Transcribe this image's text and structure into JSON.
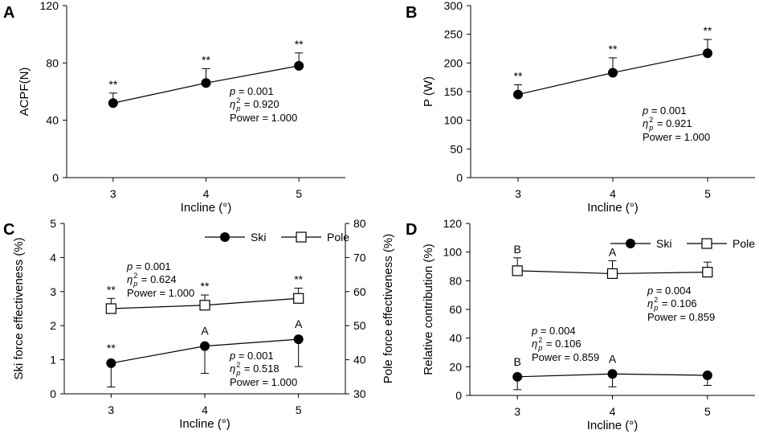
{
  "chart_data": [
    {
      "panel": "A",
      "type": "line",
      "xlabel": "Incline (°)",
      "ylabel": "ACPF(N)",
      "x": [
        3,
        4,
        5
      ],
      "xlim": [
        2.5,
        5.5
      ],
      "ylim": [
        0,
        120
      ],
      "yticks": [
        0,
        40,
        80,
        120
      ],
      "series": [
        {
          "name": "ACPF",
          "marker": "filled-circle",
          "values": [
            52,
            66,
            78
          ],
          "err": [
            7,
            10,
            9
          ],
          "err_dir": "up",
          "labels": [
            "**",
            "**",
            "**"
          ],
          "label_pos": "above"
        }
      ],
      "stats": [
        {
          "p": "p = 0.001",
          "eta": "η",
          "eta_sub": "p",
          "eta_sup": "2",
          "eta_val": " = 0.920",
          "power": "Power = 1.000"
        }
      ]
    },
    {
      "panel": "B",
      "type": "line",
      "xlabel": "Incline (°)",
      "ylabel": "P (W)",
      "x": [
        3,
        4,
        5
      ],
      "xlim": [
        2.5,
        5.5
      ],
      "ylim": [
        0,
        300
      ],
      "yticks": [
        0,
        50,
        100,
        150,
        200,
        250,
        300
      ],
      "series": [
        {
          "name": "P",
          "marker": "filled-circle",
          "values": [
            145,
            183,
            217
          ],
          "err": [
            17,
            26,
            24
          ],
          "err_dir": "up",
          "labels": [
            "**",
            "**",
            "**"
          ],
          "label_pos": "above"
        }
      ],
      "stats": [
        {
          "p": "p = 0.001",
          "eta": "η",
          "eta_sub": "p",
          "eta_sup": "2",
          "eta_val": " = 0.921",
          "power": "Power = 1.000"
        }
      ]
    },
    {
      "panel": "C",
      "type": "line",
      "xlabel": "Incline (°)",
      "ylabel": "Ski force effectiveness (%)",
      "y2label": "Pole force effectiveness (%)",
      "x": [
        3,
        4,
        5
      ],
      "xlim": [
        2.5,
        5.5
      ],
      "ylim": [
        0,
        5
      ],
      "yticks": [
        0,
        1,
        2,
        3,
        4,
        5
      ],
      "y2lim": [
        30,
        80
      ],
      "y2ticks": [
        30,
        40,
        50,
        60,
        70,
        80
      ],
      "legend": [
        "Ski",
        "Pole"
      ],
      "series": [
        {
          "name": "Ski",
          "marker": "filled-circle",
          "axis": "left",
          "values": [
            0.9,
            1.4,
            1.6
          ],
          "err": [
            0.7,
            0.8,
            0.8
          ],
          "err_dir": "down",
          "labels": [
            "**",
            "A",
            "A"
          ],
          "label_pos": "above"
        },
        {
          "name": "Pole",
          "marker": "open-square",
          "axis": "right",
          "values": [
            55,
            56,
            58
          ],
          "err": [
            3,
            3,
            3
          ],
          "err_dir": "up",
          "labels": [
            "**",
            "**",
            "**"
          ],
          "label_pos": "above"
        }
      ],
      "stats": [
        {
          "p": "p = 0.001",
          "eta": "η",
          "eta_sub": "p",
          "eta_sup": "2",
          "eta_val": " = 0.624",
          "power": "Power = 1.000"
        },
        {
          "p": "p = 0.001",
          "eta": "η",
          "eta_sub": "p",
          "eta_sup": "2",
          "eta_val": " = 0.518",
          "power": "Power = 1.000"
        }
      ]
    },
    {
      "panel": "D",
      "type": "line",
      "xlabel": "Incline (°)",
      "ylabel": "Relative contribution (%)",
      "x": [
        3,
        4,
        5
      ],
      "xlim": [
        2.5,
        5.5
      ],
      "ylim": [
        0,
        120
      ],
      "yticks": [
        0,
        20,
        40,
        60,
        80,
        100,
        120
      ],
      "legend": [
        "Ski",
        "Pole"
      ],
      "series": [
        {
          "name": "Pole",
          "marker": "open-square",
          "values": [
            87,
            85,
            86
          ],
          "err": [
            9,
            9,
            7
          ],
          "err_dir": "up",
          "labels": [
            "B",
            "A",
            ""
          ],
          "label_pos": "above"
        },
        {
          "name": "Ski",
          "marker": "filled-circle",
          "values": [
            13,
            15,
            14
          ],
          "err": [
            9,
            9,
            7
          ],
          "err_dir": "down",
          "labels": [
            "B",
            "A",
            ""
          ],
          "label_pos": "above"
        }
      ],
      "stats": [
        {
          "p": "p = 0.004",
          "eta": "η",
          "eta_sub": "p",
          "eta_sup": "2",
          "eta_val": " = 0.106",
          "power": "Power = 0.859"
        },
        {
          "p": "p = 0.004",
          "eta": "η",
          "eta_sub": "p",
          "eta_sup": "2",
          "eta_val": " = 0.106",
          "power": "Power = 0.859"
        }
      ]
    }
  ]
}
